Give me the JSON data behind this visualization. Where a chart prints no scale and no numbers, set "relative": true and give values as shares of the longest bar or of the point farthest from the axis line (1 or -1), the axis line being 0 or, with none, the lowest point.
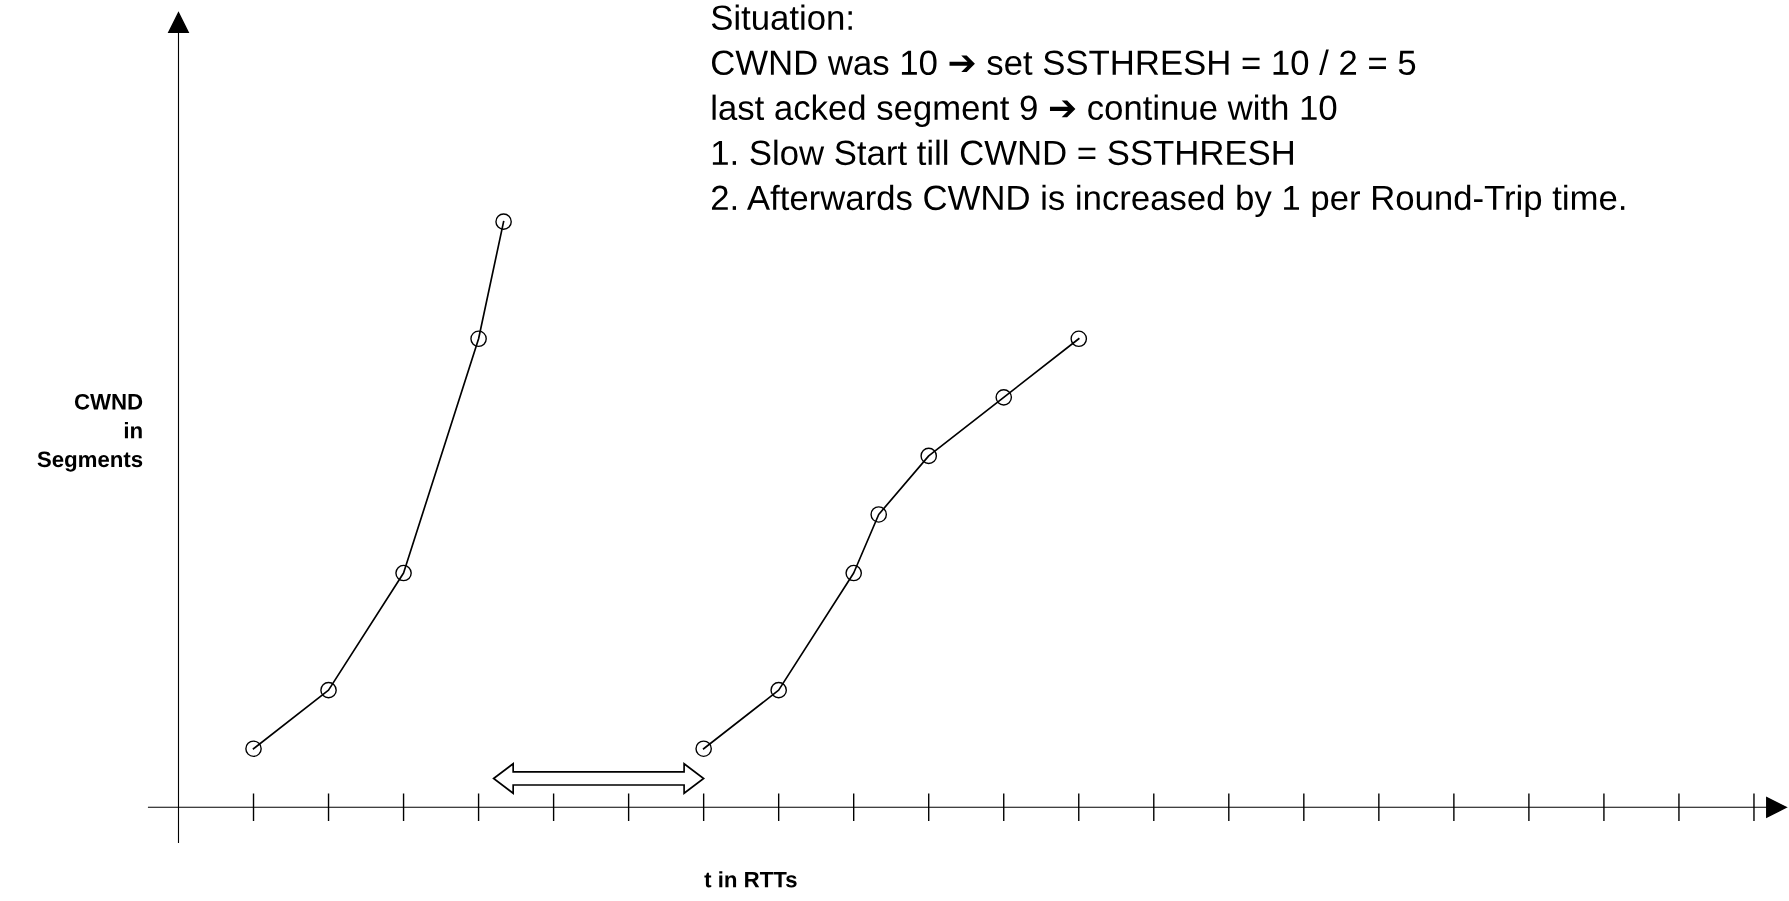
{
  "chart_data": {
    "type": "line",
    "relative": true,
    "xlabel": "t in RTTs",
    "ylabel": "CWND\nin\nSegments",
    "annotations": [
      "Situation:",
      "CWND was 10 ➔ set SSTHRESH = 10 / 2 = 5",
      "last acked segment 9 ➔ continue with 10",
      "1. Slow Start till CWND = SSTHRESH",
      "2. Afterwards CWND is increased by 1 per Round-Trip time."
    ],
    "categories": [
      null,
      null,
      null,
      null,
      null,
      null,
      null,
      null,
      null,
      null,
      null,
      null,
      null,
      null,
      null,
      null,
      null,
      null,
      null,
      null,
      null,
      null,
      null,
      null,
      null,
      null,
      null,
      null,
      null,
      null,
      null,
      null,
      null,
      null,
      null,
      null,
      null,
      null,
      null,
      null,
      null,
      null,
      null,
      null,
      null,
      null,
      null,
      null,
      null,
      null,
      null,
      null,
      null,
      null,
      null,
      null,
      null,
      null,
      null,
      null,
      null,
      null,
      null,
      null
    ],
    "marker": "circle",
    "line_style": "solid",
    "series": [
      {
        "color": "#000000",
        "values": [
          null,
          null,
          null,
          0.1,
          null,
          null,
          0.2,
          null,
          null,
          0.4,
          null,
          null,
          0.8,
          1.0,
          null,
          null,
          null,
          null,
          null,
          null,
          null,
          null,
          null,
          null,
          null,
          null,
          null,
          null,
          null,
          null,
          null,
          null,
          null,
          null,
          null,
          null,
          null,
          null,
          null,
          null,
          null,
          null,
          null,
          null,
          null,
          null,
          null,
          null,
          null,
          null,
          null,
          null,
          null,
          null,
          null,
          null,
          null,
          null,
          null,
          null,
          null,
          null,
          null,
          null
        ]
      },
      {
        "color": "#000000",
        "values": [
          null,
          null,
          null,
          null,
          null,
          null,
          null,
          null,
          null,
          null,
          null,
          null,
          null,
          null,
          null,
          null,
          null,
          null,
          null,
          null,
          null,
          0.1,
          null,
          null,
          0.2,
          null,
          null,
          0.4,
          0.5,
          null,
          0.6,
          null,
          null,
          0.7,
          null,
          null,
          0.8,
          null,
          null,
          null,
          null,
          null,
          null,
          null,
          null,
          null,
          null,
          null,
          null,
          null,
          null,
          null,
          null,
          null,
          null,
          null,
          null,
          null,
          null,
          null,
          null,
          null,
          null,
          null
        ]
      }
    ]
  }
}
